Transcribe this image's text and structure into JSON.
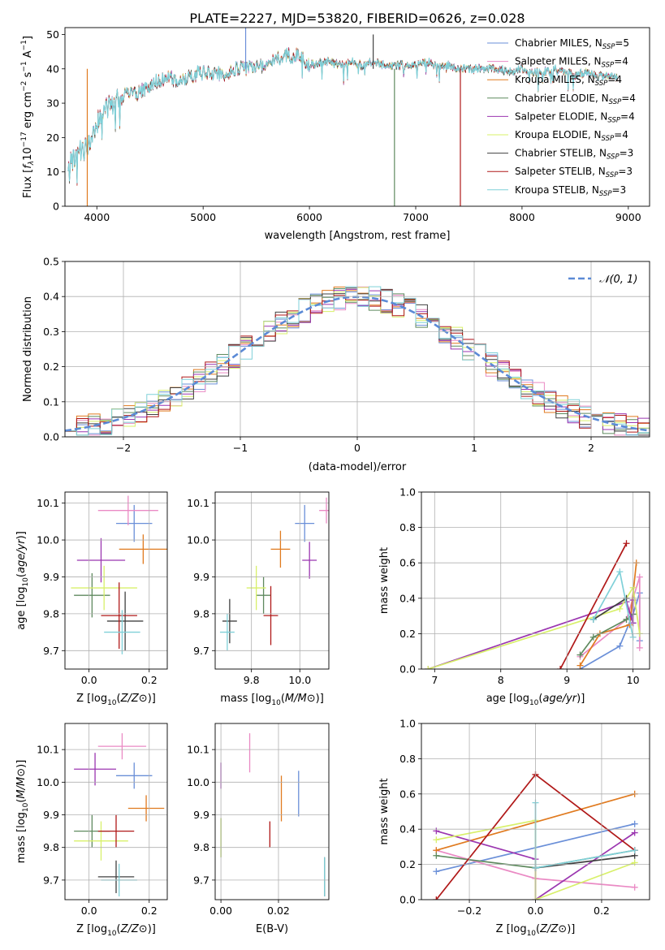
{
  "figure_title": "PLATE=2227, MJD=53820, FIBERID=0626, z=0.028",
  "colors": {
    "Chabrier MILES": "#6a8fd8",
    "Salpeter MILES": "#ea8ac4",
    "Kroupa MILES": "#e07a1f",
    "Chabrier ELODIE": "#5f8a5f",
    "Salpeter ELODIE": "#9b36b0",
    "Kroupa ELODIE": "#d8f06a",
    "Chabrier STELIB": "#404040",
    "Salpeter STELIB": "#b01818",
    "Kroupa STELIB": "#7fd0d8",
    "normal": "#5b8ad6"
  },
  "chart_data": [
    {
      "id": "spectrum",
      "type": "line",
      "title": "",
      "xlabel": "wavelength [Angstrom, rest frame]",
      "ylabel": "Flux [f_λ 10^-17 erg cm^-2 s^-1 A^-1]",
      "xlim": [
        3700,
        9200
      ],
      "ylim": [
        0,
        52
      ],
      "xticks": [
        "4000",
        "5000",
        "6000",
        "7000",
        "8000",
        "9000"
      ],
      "yticks": [
        "0",
        "10",
        "20",
        "30",
        "40",
        "50"
      ],
      "legend_position": "top-right",
      "legend": [
        {
          "label": "Chabrier MILES, N",
          "sub": "SSP",
          "tail": "=5"
        },
        {
          "label": "Salpeter MILES, N",
          "sub": "SSP",
          "tail": "=4"
        },
        {
          "label": "Kroupa MILES, N",
          "sub": "SSP",
          "tail": "=4"
        },
        {
          "label": "Chabrier ELODIE, N",
          "sub": "SSP",
          "tail": "=4"
        },
        {
          "label": "Salpeter ELODIE, N",
          "sub": "SSP",
          "tail": "=4"
        },
        {
          "label": "Kroupa ELODIE, N",
          "sub": "SSP",
          "tail": "=4"
        },
        {
          "label": "Chabrier STELIB, N",
          "sub": "SSP",
          "tail": "=3"
        },
        {
          "label": "Salpeter STELIB, N",
          "sub": "SSP",
          "tail": "=3"
        },
        {
          "label": "Kroupa STELIB, N",
          "sub": "SSP",
          "tail": "=3"
        }
      ],
      "continuum": [
        [
          3730,
          12
        ],
        [
          3800,
          14
        ],
        [
          3850,
          16
        ],
        [
          3900,
          17
        ],
        [
          3950,
          20
        ],
        [
          4000,
          24
        ],
        [
          4050,
          27
        ],
        [
          4100,
          29
        ],
        [
          4200,
          31
        ],
        [
          4300,
          33
        ],
        [
          4400,
          33
        ],
        [
          4500,
          35
        ],
        [
          4600,
          37
        ],
        [
          4700,
          37
        ],
        [
          4800,
          36
        ],
        [
          4900,
          38
        ],
        [
          5000,
          39
        ],
        [
          5100,
          39
        ],
        [
          5200,
          38
        ],
        [
          5300,
          40
        ],
        [
          5400,
          40
        ],
        [
          5500,
          41
        ],
        [
          5600,
          41
        ],
        [
          5700,
          43
        ],
        [
          5800,
          44
        ],
        [
          5900,
          44
        ],
        [
          6000,
          41
        ],
        [
          6100,
          42
        ],
        [
          6200,
          42
        ],
        [
          6300,
          41
        ],
        [
          6400,
          42
        ],
        [
          6500,
          41
        ],
        [
          6600,
          42
        ],
        [
          6700,
          41
        ],
        [
          6800,
          41
        ],
        [
          6900,
          41
        ],
        [
          7000,
          41
        ],
        [
          7100,
          42
        ],
        [
          7200,
          41
        ],
        [
          7300,
          41
        ],
        [
          7400,
          40
        ],
        [
          7500,
          40
        ],
        [
          7600,
          40
        ],
        [
          7700,
          40
        ],
        [
          7800,
          40
        ],
        [
          7900,
          39
        ],
        [
          8000,
          40
        ],
        [
          8100,
          39
        ],
        [
          8200,
          39
        ],
        [
          8300,
          40
        ],
        [
          8400,
          39
        ],
        [
          8500,
          38
        ],
        [
          8600,
          39
        ],
        [
          8700,
          38
        ],
        [
          8800,
          38
        ],
        [
          8900,
          37
        ]
      ],
      "spikes": [
        {
          "x": 3910,
          "y": 0,
          "series": "Kroupa MILES"
        },
        {
          "x": 6800,
          "y": 0,
          "series": "Chabrier ELODIE"
        },
        {
          "x": 7420,
          "y": 0,
          "series": "Salpeter STELIB"
        },
        {
          "x": 5400,
          "y": 52,
          "series": "Chabrier MILES"
        },
        {
          "x": 6600,
          "y": 50,
          "series": "Chabrier STELIB"
        }
      ]
    },
    {
      "id": "residuals",
      "type": "step",
      "xlabel": "(data-model)/error",
      "ylabel": "Normed distribution",
      "xlim": [
        -2.5,
        2.5
      ],
      "ylim": [
        0,
        0.5
      ],
      "xticks": [
        "−2",
        "−1",
        "0",
        "1",
        "2"
      ],
      "yticks": [
        "0.0",
        "0.1",
        "0.2",
        "0.3",
        "0.4",
        "0.5"
      ],
      "bin_width": 0.1,
      "legend_position": "top-right",
      "legend_label": "𝒩(0, 1)"
    },
    {
      "id": "age-vs-Z",
      "type": "errorbar",
      "xlabel": "Z [log10(Z/Z⊙)]",
      "ylabel": "age  [log10(age/yr)]",
      "xlim": [
        -0.08,
        0.26
      ],
      "ylim": [
        9.65,
        10.13
      ],
      "xticks": [
        "0.0",
        "0.2"
      ],
      "yticks": [
        "9.7",
        "9.8",
        "9.9",
        "10.0",
        "10.1"
      ],
      "points": [
        {
          "series": "Chabrier MILES",
          "x": 0.15,
          "xerr": 0.06,
          "y": 10.045,
          "yerr": 0.05
        },
        {
          "series": "Salpeter MILES",
          "x": 0.13,
          "xerr": 0.1,
          "y": 10.08,
          "yerr": 0.04
        },
        {
          "series": "Kroupa MILES",
          "x": 0.18,
          "xerr": 0.08,
          "y": 9.975,
          "yerr": 0.04
        },
        {
          "series": "Chabrier ELODIE",
          "x": 0.01,
          "xerr": 0.06,
          "y": 9.85,
          "yerr": 0.06
        },
        {
          "series": "Salpeter ELODIE",
          "x": 0.04,
          "xerr": 0.08,
          "y": 9.945,
          "yerr": 0.06
        },
        {
          "series": "Kroupa ELODIE",
          "x": 0.05,
          "xerr": 0.11,
          "y": 9.87,
          "yerr": 0.06
        },
        {
          "series": "Chabrier STELIB",
          "x": 0.12,
          "xerr": 0.06,
          "y": 9.78,
          "yerr": 0.08
        },
        {
          "series": "Salpeter STELIB",
          "x": 0.1,
          "xerr": 0.06,
          "y": 9.795,
          "yerr": 0.09
        },
        {
          "series": "Kroupa STELIB",
          "x": 0.11,
          "xerr": 0.06,
          "y": 9.75,
          "yerr": 0.06
        }
      ]
    },
    {
      "id": "age-vs-mass",
      "type": "errorbar",
      "xlabel": "mass [log10(M/M⊙)]",
      "ylabel": "",
      "xlim": [
        9.65,
        10.12
      ],
      "ylim": [
        9.65,
        10.13
      ],
      "xticks": [
        "9.8",
        "10.0"
      ],
      "yticks": [
        "9.7",
        "9.8",
        "9.9",
        "10.0",
        "10.1"
      ],
      "points": [
        {
          "series": "Chabrier MILES",
          "x": 10.02,
          "xerr": 0.04,
          "y": 10.045,
          "yerr": 0.05
        },
        {
          "series": "Salpeter MILES",
          "x": 10.11,
          "xerr": 0.03,
          "y": 10.08,
          "yerr": 0.035
        },
        {
          "series": "Kroupa MILES",
          "x": 9.92,
          "xerr": 0.04,
          "y": 9.975,
          "yerr": 0.05
        },
        {
          "series": "Chabrier ELODIE",
          "x": 9.85,
          "xerr": 0.03,
          "y": 9.85,
          "yerr": 0.05
        },
        {
          "series": "Salpeter ELODIE",
          "x": 10.04,
          "xerr": 0.03,
          "y": 9.945,
          "yerr": 0.05
        },
        {
          "series": "Kroupa ELODIE",
          "x": 9.82,
          "xerr": 0.04,
          "y": 9.87,
          "yerr": 0.06
        },
        {
          "series": "Chabrier STELIB",
          "x": 9.71,
          "xerr": 0.03,
          "y": 9.78,
          "yerr": 0.06
        },
        {
          "series": "Salpeter STELIB",
          "x": 9.88,
          "xerr": 0.03,
          "y": 9.795,
          "yerr": 0.08
        },
        {
          "series": "Kroupa STELIB",
          "x": 9.7,
          "xerr": 0.03,
          "y": 9.75,
          "yerr": 0.05
        }
      ]
    },
    {
      "id": "weight-vs-age",
      "type": "line",
      "xlabel": "age  [log10(age/yr)]",
      "ylabel": "mass weight",
      "xlim": [
        6.8,
        10.25
      ],
      "ylim": [
        0,
        1.0
      ],
      "xticks": [
        "7",
        "8",
        "9",
        "10"
      ],
      "yticks": [
        "0.0",
        "0.2",
        "0.4",
        "0.6",
        "0.8",
        "1.0"
      ],
      "series": [
        {
          "name": "Chabrier MILES",
          "points": [
            [
              9.2,
              0.0
            ],
            [
              9.8,
              0.13
            ],
            [
              10.0,
              0.31
            ],
            [
              10.1,
              0.43
            ],
            [
              10.1,
              0.16
            ]
          ]
        },
        {
          "name": "Salpeter MILES",
          "points": [
            [
              9.2,
              0.07
            ],
            [
              9.9,
              0.28
            ],
            [
              10.1,
              0.52
            ],
            [
              10.1,
              0.12
            ]
          ]
        },
        {
          "name": "Kroupa MILES",
          "points": [
            [
              9.2,
              0.02
            ],
            [
              9.5,
              0.2
            ],
            [
              9.95,
              0.25
            ],
            [
              10.05,
              0.6
            ]
          ]
        },
        {
          "name": "Chabrier ELODIE",
          "points": [
            [
              9.2,
              0.08
            ],
            [
              9.4,
              0.18
            ],
            [
              9.9,
              0.28
            ],
            [
              10.0,
              0.31
            ]
          ]
        },
        {
          "name": "Salpeter ELODIE",
          "points": [
            [
              6.9,
              0.0
            ],
            [
              9.9,
              0.38
            ],
            [
              10.0,
              0.26
            ],
            [
              10.0,
              0.39
            ]
          ]
        },
        {
          "name": "Kroupa ELODIE",
          "points": [
            [
              6.9,
              0.0
            ],
            [
              9.8,
              0.34
            ],
            [
              10.0,
              0.46
            ],
            [
              10.1,
              0.2
            ]
          ]
        },
        {
          "name": "Chabrier STELIB",
          "points": [
            [
              9.4,
              0.28
            ],
            [
              9.9,
              0.4
            ]
          ]
        },
        {
          "name": "Salpeter STELIB",
          "points": [
            [
              8.9,
              0.0
            ],
            [
              9.9,
              0.71
            ]
          ]
        },
        {
          "name": "Kroupa STELIB",
          "points": [
            [
              9.4,
              0.28
            ],
            [
              9.8,
              0.55
            ],
            [
              10.0,
              0.18
            ]
          ]
        }
      ]
    },
    {
      "id": "mass-vs-Z",
      "type": "errorbar",
      "xlabel": "Z [log10(Z/Z⊙)]",
      "ylabel": "mass [log10(M/M⊙)]",
      "xlim": [
        -0.08,
        0.26
      ],
      "ylim": [
        9.64,
        10.18
      ],
      "xticks": [
        "0.0",
        "0.2"
      ],
      "yticks": [
        "9.7",
        "9.8",
        "9.9",
        "10.0",
        "10.1"
      ],
      "points": [
        {
          "series": "Chabrier MILES",
          "x": 0.15,
          "xerr": 0.06,
          "y": 10.02,
          "yerr": 0.04
        },
        {
          "series": "Salpeter MILES",
          "x": 0.11,
          "xerr": 0.08,
          "y": 10.11,
          "yerr": 0.04
        },
        {
          "series": "Kroupa MILES",
          "x": 0.19,
          "xerr": 0.06,
          "y": 9.92,
          "yerr": 0.04
        },
        {
          "series": "Chabrier ELODIE",
          "x": 0.01,
          "xerr": 0.06,
          "y": 9.85,
          "yerr": 0.05
        },
        {
          "series": "Salpeter ELODIE",
          "x": 0.02,
          "xerr": 0.07,
          "y": 10.04,
          "yerr": 0.05
        },
        {
          "series": "Kroupa ELODIE",
          "x": 0.04,
          "xerr": 0.09,
          "y": 9.82,
          "yerr": 0.06
        },
        {
          "series": "Chabrier STELIB",
          "x": 0.09,
          "xerr": 0.06,
          "y": 9.71,
          "yerr": 0.05
        },
        {
          "series": "Salpeter STELIB",
          "x": 0.09,
          "xerr": 0.06,
          "y": 9.85,
          "yerr": 0.05
        },
        {
          "series": "Kroupa STELIB",
          "x": 0.1,
          "xerr": 0.06,
          "y": 9.7,
          "yerr": 0.05
        }
      ]
    },
    {
      "id": "mass-vs-ebv",
      "type": "errorbar",
      "xlabel": "E(B-V)",
      "ylabel": "",
      "xlim": [
        -0.002,
        0.0375
      ],
      "ylim": [
        9.64,
        10.18
      ],
      "xticks": [
        "0.00",
        "0.02"
      ],
      "yticks": [
        "9.7",
        "9.8",
        "9.9",
        "10.0",
        "10.1"
      ],
      "points": [
        {
          "series": "Chabrier MILES",
          "x": 0.027,
          "y": 9.965,
          "yerr": 0.07
        },
        {
          "series": "Salpeter MILES",
          "x": 0.01,
          "y": 10.09,
          "yerr": 0.06
        },
        {
          "series": "Kroupa MILES",
          "x": 0.021,
          "y": 9.95,
          "yerr": 0.07
        },
        {
          "series": "Chabrier ELODIE",
          "x": 0.0,
          "y": 9.83,
          "yerr": 0.06
        },
        {
          "series": "Salpeter ELODIE",
          "x": 0.0,
          "y": 10.02,
          "yerr": 0.04
        },
        {
          "series": "Kroupa ELODIE",
          "x": 0.0,
          "y": 9.83,
          "yerr": 0.06
        },
        {
          "series": "Chabrier STELIB",
          "x": 0.036,
          "y": 9.71,
          "yerr": 0.06
        },
        {
          "series": "Salpeter STELIB",
          "x": 0.017,
          "y": 9.84,
          "yerr": 0.04
        },
        {
          "series": "Kroupa STELIB",
          "x": 0.036,
          "y": 9.71,
          "yerr": 0.06
        }
      ]
    },
    {
      "id": "weight-vs-Z",
      "type": "line",
      "xlabel": "Z [log10(Z/Z⊙)]",
      "ylabel": "mass weight",
      "xlim": [
        -0.345,
        0.345
      ],
      "ylim": [
        0,
        1.0
      ],
      "xticks": [
        "−0.2",
        "0.0",
        "0.2"
      ],
      "yticks": [
        "0.0",
        "0.2",
        "0.4",
        "0.6",
        "0.8",
        "1.0"
      ],
      "series": [
        {
          "name": "Chabrier MILES",
          "points": [
            [
              -0.3,
              0.16
            ],
            [
              0.3,
              0.43
            ]
          ]
        },
        {
          "name": "Salpeter MILES",
          "points": [
            [
              -0.3,
              0.28
            ],
            [
              0.0,
              0.12
            ],
            [
              0.3,
              0.07
            ]
          ]
        },
        {
          "name": "Kroupa MILES",
          "points": [
            [
              -0.3,
              0.28
            ],
            [
              0.3,
              0.6
            ]
          ]
        },
        {
          "name": "Chabrier ELODIE",
          "points": [
            [
              -0.3,
              0.25
            ],
            [
              0.0,
              0.18
            ],
            [
              0.3,
              0.28
            ]
          ]
        },
        {
          "name": "Salpeter ELODIE",
          "points": [
            [
              -0.3,
              0.39
            ],
            [
              0.0,
              0.23
            ],
            [
              0.0,
              0.0
            ],
            [
              0.3,
              0.38
            ]
          ]
        },
        {
          "name": "Kroupa ELODIE",
          "points": [
            [
              -0.3,
              0.34
            ],
            [
              0.0,
              0.45
            ],
            [
              0.0,
              0.0
            ],
            [
              0.3,
              0.21
            ]
          ]
        },
        {
          "name": "Chabrier STELIB",
          "points": [
            [
              0.0,
              0.18
            ],
            [
              0.3,
              0.25
            ]
          ]
        },
        {
          "name": "Salpeter STELIB",
          "points": [
            [
              -0.3,
              0.0
            ],
            [
              0.0,
              0.71
            ],
            [
              0.3,
              0.28
            ]
          ]
        },
        {
          "name": "Kroupa STELIB",
          "points": [
            [
              0.0,
              0.55
            ],
            [
              0.0,
              0.18
            ],
            [
              0.3,
              0.28
            ]
          ]
        }
      ]
    }
  ]
}
